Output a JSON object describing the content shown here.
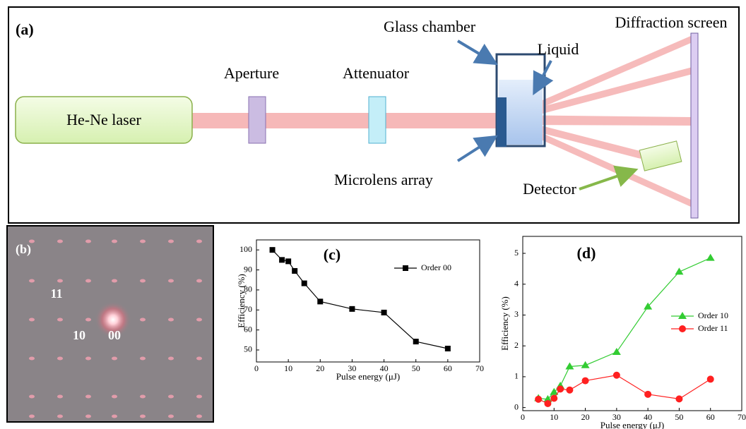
{
  "panel_a": {
    "label": "(a)",
    "laser": "He-Ne laser",
    "aperture": "Aperture",
    "attenuator": "Attenuator",
    "glass_chamber": "Glass chamber",
    "liquid": "Liquid",
    "screen": "Diffraction screen",
    "microlens": "Microlens array",
    "detector": "Detector"
  },
  "panel_b": {
    "label": "(b)",
    "orders": [
      "11",
      "10",
      "00"
    ]
  },
  "chart_data": [
    {
      "type": "line",
      "title": "(c)",
      "x_label": "Pulse energy (μJ)",
      "y_label": "Efficiency (%)",
      "x": [
        5,
        8,
        10,
        12,
        15,
        20,
        30,
        40,
        50,
        60
      ],
      "series": [
        {
          "name": "Order 00",
          "color": "#000000",
          "marker": "square",
          "values": [
            100,
            95,
            94.3,
            89.5,
            83.3,
            74.2,
            70.5,
            68.7,
            54.2,
            50.7
          ]
        }
      ],
      "xlim": [
        0,
        70
      ],
      "xticks": [
        0,
        10,
        20,
        30,
        40,
        50,
        60,
        70
      ],
      "ylim": [
        44,
        105
      ],
      "yticks": [
        50,
        60,
        70,
        80,
        90,
        100
      ],
      "legend": "upper right"
    },
    {
      "type": "line",
      "title": "(d)",
      "x_label": "Pulse energy (μJ)",
      "y_label": "Efficiency (%)",
      "x": [
        5,
        8,
        10,
        12,
        15,
        20,
        30,
        40,
        50,
        60
      ],
      "series": [
        {
          "name": "Order 10",
          "color": "#33cc33",
          "marker": "triangle",
          "values": [
            0.3,
            0.27,
            0.5,
            0.7,
            1.33,
            1.37,
            1.8,
            3.27,
            4.4,
            4.85
          ]
        },
        {
          "name": "Order 11",
          "color": "#ff2020",
          "marker": "circle",
          "values": [
            0.27,
            0.13,
            0.3,
            0.6,
            0.57,
            0.87,
            1.05,
            0.43,
            0.28,
            0.92
          ]
        }
      ],
      "xlim": [
        0,
        70
      ],
      "xticks": [
        0,
        10,
        20,
        30,
        40,
        50,
        60,
        70
      ],
      "ylim": [
        -0.1,
        5.55
      ],
      "yticks": [
        0,
        1,
        2,
        3,
        4,
        5
      ],
      "legend": "center right"
    }
  ]
}
